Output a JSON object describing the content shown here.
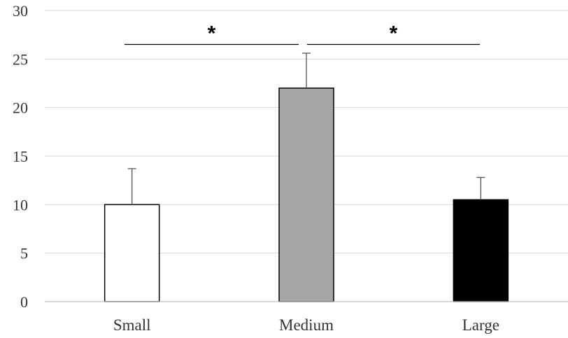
{
  "chart_data": {
    "type": "bar",
    "categories": [
      "Small",
      "Medium",
      "Large"
    ],
    "values": [
      10,
      22,
      10.5
    ],
    "errors": [
      3.7,
      3.6,
      2.3
    ],
    "colors": [
      "#ffffff",
      "#a6a6a6",
      "#000000"
    ],
    "title": "",
    "xlabel": "",
    "ylabel": "",
    "ylim": [
      0,
      30
    ],
    "yticks": [
      "0",
      "5",
      "10",
      "15",
      "20",
      "25",
      "30"
    ],
    "grid": true,
    "significance": [
      {
        "from": "Small",
        "to": "Medium",
        "label": "*"
      },
      {
        "from": "Medium",
        "to": "Large",
        "label": "*"
      }
    ]
  }
}
